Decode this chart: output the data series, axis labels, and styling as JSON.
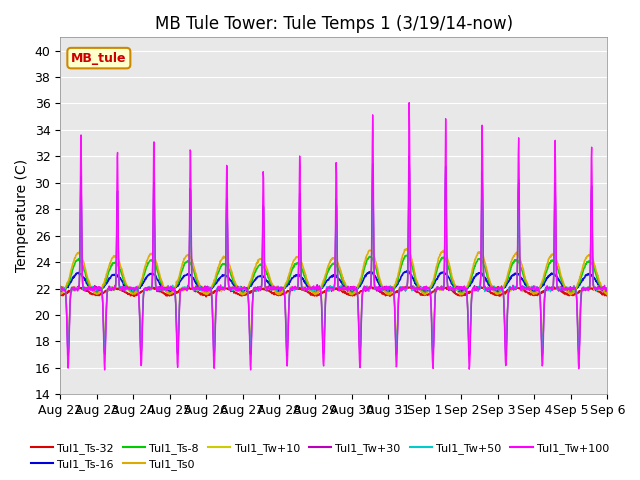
{
  "title": "MB Tule Tower: Tule Temps 1 (3/19/14-now)",
  "ylabel": "Temperature (C)",
  "ylim": [
    14,
    41
  ],
  "yticks": [
    14,
    16,
    18,
    20,
    22,
    24,
    26,
    28,
    30,
    32,
    34,
    36,
    38,
    40
  ],
  "x_labels": [
    "Aug 22",
    "Aug 23",
    "Aug 24",
    "Aug 25",
    "Aug 26",
    "Aug 27",
    "Aug 28",
    "Aug 29",
    "Aug 30",
    "Aug 31",
    "Sep 1",
    "Sep 2",
    "Sep 3",
    "Sep 4",
    "Sep 5",
    "Sep 6"
  ],
  "series": [
    {
      "label": "Tul1_Ts-32",
      "color": "#dd0000",
      "lw": 1.2,
      "base": 21.8,
      "amp_up": 0.3,
      "amp_dn": 0.3,
      "smooth": true
    },
    {
      "label": "Tul1_Ts-16",
      "color": "#0000dd",
      "lw": 1.2,
      "base": 22.3,
      "amp_up": 1.0,
      "amp_dn": 0.5,
      "smooth": true
    },
    {
      "label": "Tul1_Ts-8",
      "color": "#00cc00",
      "lw": 1.2,
      "base": 22.5,
      "amp_up": 2.0,
      "amp_dn": 0.8,
      "smooth": true
    },
    {
      "label": "Tul1_Ts0",
      "color": "#ddaa00",
      "lw": 1.2,
      "base": 22.8,
      "amp_up": 2.2,
      "amp_dn": 1.2,
      "smooth": true
    },
    {
      "label": "Tul1_Tw+10",
      "color": "#cccc00",
      "lw": 1.0,
      "base": 22.0,
      "amp_up": 8.0,
      "amp_dn": 4.0,
      "smooth": false
    },
    {
      "label": "Tul1_Tw+30",
      "color": "#bb00bb",
      "lw": 1.0,
      "base": 22.0,
      "amp_up": 10.0,
      "amp_dn": 5.0,
      "smooth": false
    },
    {
      "label": "Tul1_Tw+50",
      "color": "#00cccc",
      "lw": 1.0,
      "base": 22.0,
      "amp_up": 10.0,
      "amp_dn": 5.0,
      "smooth": false
    },
    {
      "label": "Tul1_Tw+100",
      "color": "#ff00ff",
      "lw": 1.0,
      "base": 22.0,
      "amp_up": 14.0,
      "amp_dn": 6.0,
      "smooth": false
    }
  ],
  "legend_label": "MB_tule",
  "legend_bg": "#ffffcc",
  "legend_edge": "#cc8800",
  "bg_color": "#ffffff",
  "plot_bg": "#e8e8e8",
  "grid_color": "#ffffff",
  "title_fontsize": 12,
  "label_fontsize": 10,
  "tick_fontsize": 9
}
